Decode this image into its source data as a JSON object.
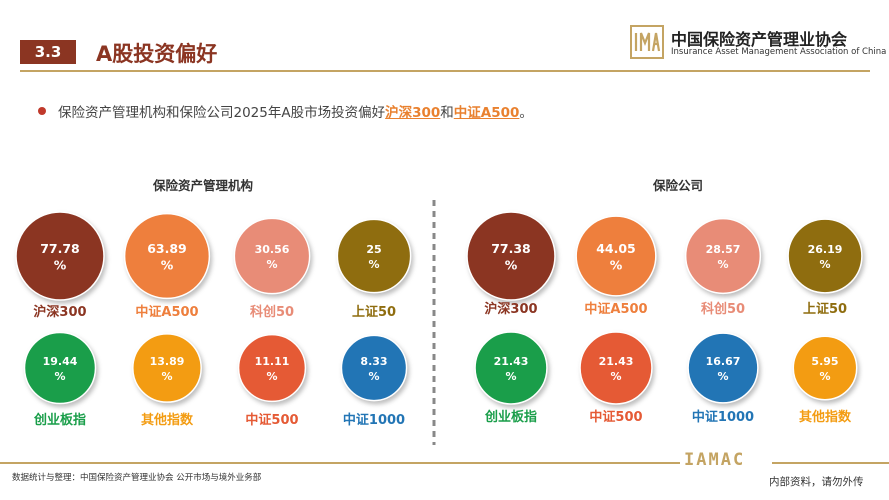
{
  "header": {
    "section_number": "3.3",
    "section_title": "A股投资偏好",
    "org_name_cn": "中国保险资产管理业协会",
    "org_name_en": "Insurance Asset Management Association of China"
  },
  "summary": {
    "prefix": "保险资产管理机构和保险公司2025年A股市场投资偏好",
    "hl1": "沪深300",
    "mid": "和",
    "hl2": "中证A500",
    "suffix": "。"
  },
  "chart_data": [
    {
      "type": "bubble",
      "title": "保险资产管理机构",
      "unit": "%",
      "labels": [
        "沪深300",
        "中证A500",
        "科创50",
        "上证50",
        "创业板指",
        "其他指数",
        "中证500",
        "中证1000"
      ],
      "values": [
        77.78,
        63.89,
        30.56,
        25,
        19.44,
        13.89,
        11.11,
        8.33
      ],
      "value_text": [
        "77.78",
        "63.89",
        "30.56",
        "25",
        "19.44",
        "13.89",
        "11.11",
        "8.33"
      ],
      "colors": [
        "#8b3522",
        "#ee7f3d",
        "#e88c77",
        "#8f6d0f",
        "#1a9e4a",
        "#f39c12",
        "#e55a35",
        "#2275b5"
      ],
      "label_colors": [
        "#8b3522",
        "#ee7f3d",
        "#e88c77",
        "#8f6d0f",
        "#1a9e4a",
        "#f39c12",
        "#e55a35",
        "#2275b5"
      ]
    },
    {
      "type": "bubble",
      "title": "保险公司",
      "unit": "%",
      "labels": [
        "沪深300",
        "中证A500",
        "科创50",
        "上证50",
        "创业板指",
        "中证500",
        "中证1000",
        "其他指数"
      ],
      "values": [
        77.38,
        44.05,
        28.57,
        26.19,
        21.43,
        21.43,
        16.67,
        5.95
      ],
      "value_text": [
        "77.38",
        "44.05",
        "28.57",
        "26.19",
        "21.43",
        "21.43",
        "16.67",
        "5.95"
      ],
      "colors": [
        "#8b3522",
        "#ee7f3d",
        "#e88c77",
        "#8f6d0f",
        "#1a9e4a",
        "#e55a35",
        "#2275b5",
        "#f39c12"
      ],
      "label_colors": [
        "#8b3522",
        "#ee7f3d",
        "#e88c77",
        "#8f6d0f",
        "#1a9e4a",
        "#e55a35",
        "#2275b5",
        "#f39c12"
      ]
    }
  ],
  "footer": {
    "source": "数据统计与整理：中国保险资产管理业协会 公开市场与境外业务部",
    "note": "内部资料，请勿外传",
    "logo_text": "IAMAC"
  }
}
